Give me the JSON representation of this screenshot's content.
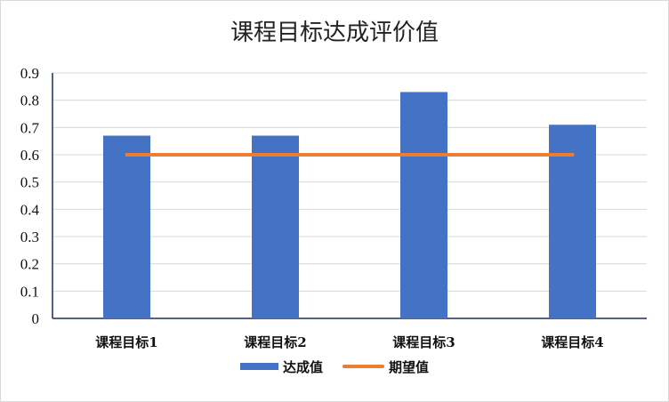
{
  "chart_data": {
    "type": "bar",
    "title": "课程目标达成评价值",
    "categories": [
      "课程目标1",
      "课程目标2",
      "课程目标3",
      "课程目标4"
    ],
    "series": [
      {
        "name": "达成值",
        "type": "bar",
        "values": [
          0.67,
          0.67,
          0.83,
          0.71
        ],
        "color": "#4472C4"
      },
      {
        "name": "期望值",
        "type": "line",
        "values": [
          0.6,
          0.6,
          0.6,
          0.6
        ],
        "color": "#ED7D31"
      }
    ],
    "yticks": [
      "0",
      "0.1",
      "0.2",
      "0.3",
      "0.4",
      "0.5",
      "0.6",
      "0.7",
      "0.8",
      "0.9"
    ],
    "ylim": [
      0,
      0.9
    ],
    "grid": true,
    "legend": "bottom"
  }
}
